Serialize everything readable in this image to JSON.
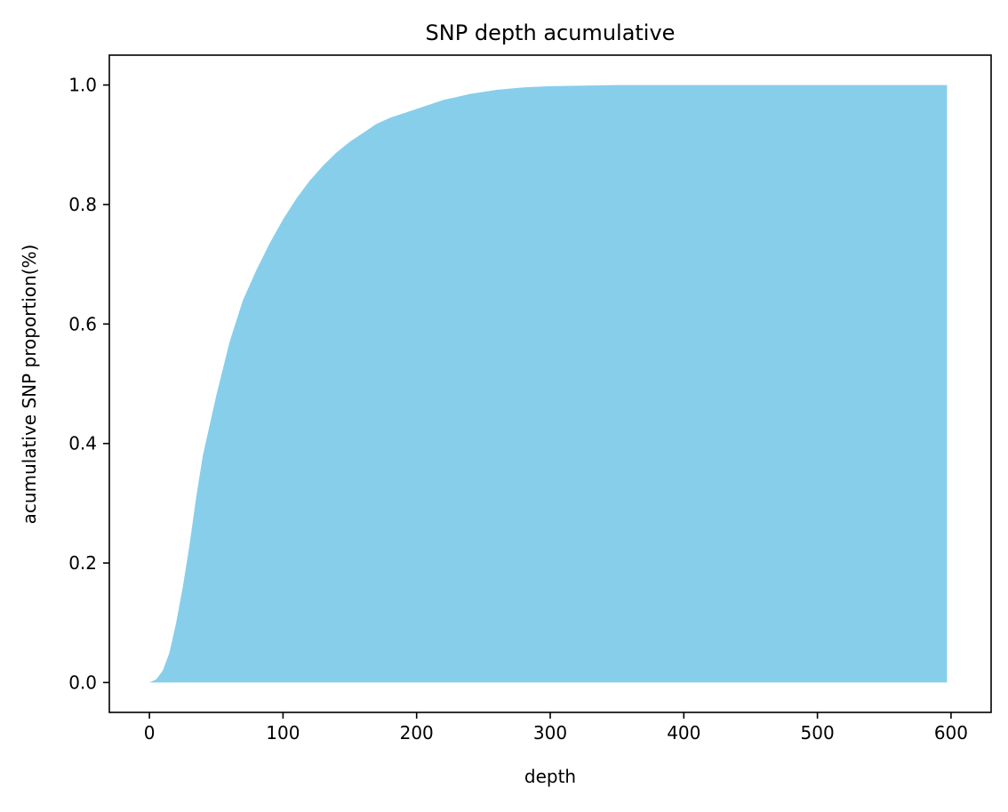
{
  "chart_data": {
    "type": "area",
    "title": "SNP depth acumulative",
    "xlabel": "depth",
    "ylabel": "acumulative SNP proportion(%)",
    "xlim": [
      -30,
      630
    ],
    "ylim": [
      -0.05,
      1.05
    ],
    "xticks": [
      0,
      100,
      200,
      300,
      400,
      500,
      600
    ],
    "yticks": [
      0.0,
      0.2,
      0.4,
      0.6,
      0.8,
      1.0
    ],
    "ytick_labels": [
      "0.0",
      "0.2",
      "0.4",
      "0.6",
      "0.8",
      "1.0"
    ],
    "grid": false,
    "fill_color": "#87CEEB",
    "series": [
      {
        "x": [
          0,
          5,
          10,
          15,
          20,
          25,
          30,
          35,
          40,
          50,
          60,
          70,
          80,
          90,
          100,
          110,
          120,
          130,
          140,
          150,
          160,
          170,
          180,
          200,
          220,
          240,
          260,
          280,
          300,
          350,
          400,
          500,
          597
        ],
        "y": [
          0.0,
          0.005,
          0.02,
          0.05,
          0.1,
          0.16,
          0.23,
          0.31,
          0.38,
          0.48,
          0.57,
          0.64,
          0.69,
          0.735,
          0.775,
          0.81,
          0.84,
          0.865,
          0.887,
          0.905,
          0.92,
          0.935,
          0.945,
          0.96,
          0.975,
          0.985,
          0.992,
          0.996,
          0.998,
          1.0,
          1.0,
          1.0,
          1.0
        ]
      }
    ]
  }
}
